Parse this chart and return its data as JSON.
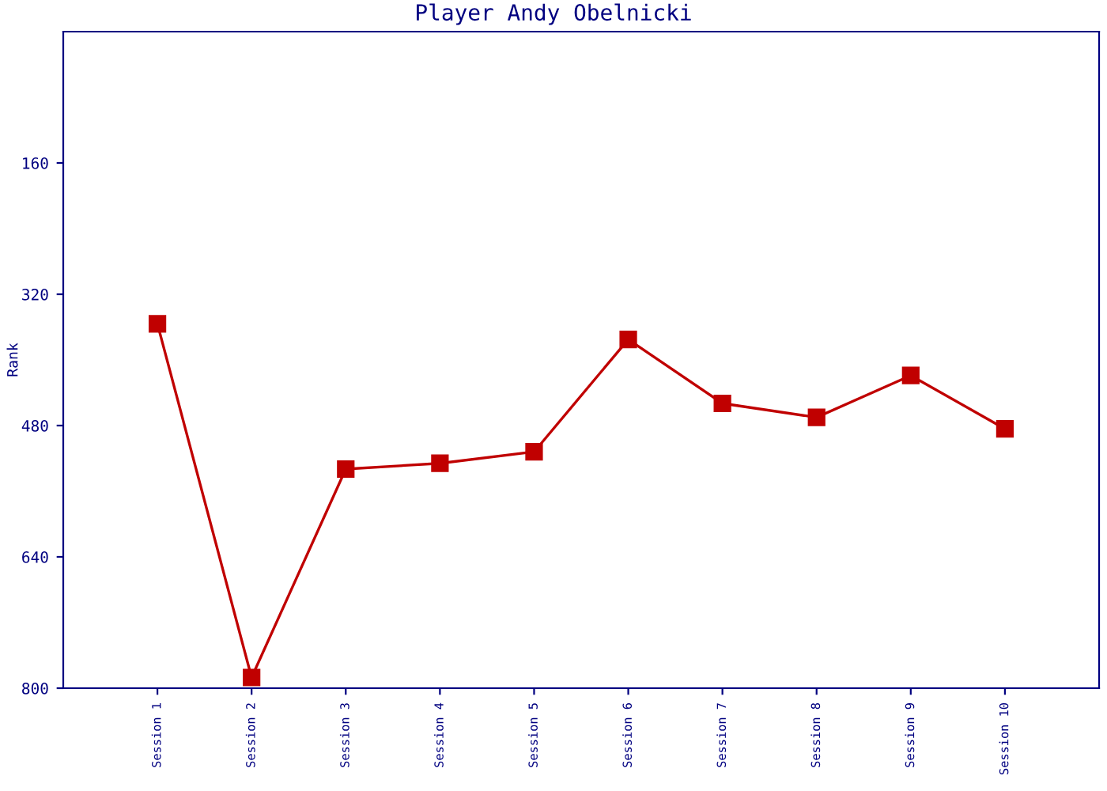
{
  "chart_data": {
    "type": "line",
    "title": "Player Andy Obelnicki",
    "ylabel": "Rank",
    "categories": [
      "Session 1",
      "Session 2",
      "Session 3",
      "Session 4",
      "Session 5",
      "Session 6",
      "Session 7",
      "Session 8",
      "Session 9",
      "Session 10"
    ],
    "series": [
      {
        "color": "#c00000",
        "values": [
          356,
          787,
          533,
          526,
          512,
          375,
          453,
          470,
          419,
          484
        ]
      }
    ],
    "ylim": [
      800,
      0
    ],
    "yticks": [
      160,
      320,
      480,
      640,
      800
    ],
    "grid": false,
    "marker": "square",
    "line_style": "solid"
  }
}
